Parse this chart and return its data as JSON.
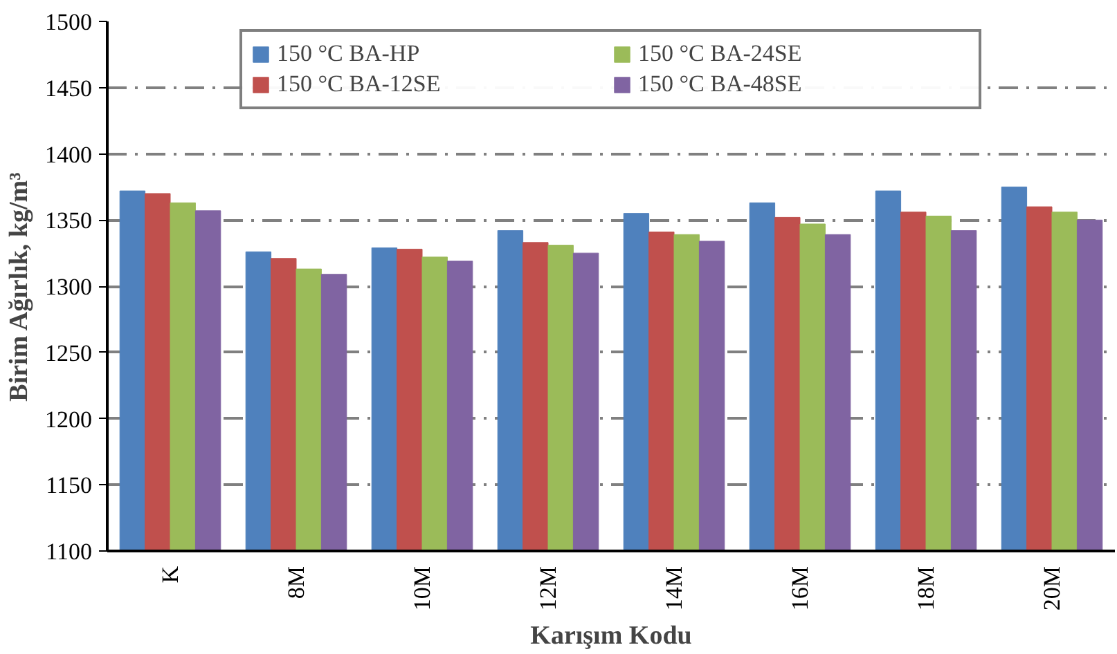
{
  "chart_data": {
    "type": "bar",
    "xlabel": "Karışım Kodu",
    "ylabel": "Birim Ağırlık, kg/m³",
    "categories": [
      "K",
      "8M",
      "10M",
      "12M",
      "14M",
      "16M",
      "18M",
      "20M"
    ],
    "series": [
      {
        "name": "150 °C BA-HP",
        "color": "#4f81bd",
        "values": [
          1372,
          1326,
          1329,
          1342,
          1355,
          1363,
          1372,
          1375
        ]
      },
      {
        "name": "150 °C BA-12SE",
        "color": "#c0504d",
        "values": [
          1370,
          1321,
          1328,
          1333,
          1341,
          1352,
          1356,
          1360
        ]
      },
      {
        "name": "150 °C BA-24SE",
        "color": "#9bbb59",
        "values": [
          1363,
          1313,
          1322,
          1331,
          1339,
          1347,
          1353,
          1356
        ]
      },
      {
        "name": "150 °C BA-48SE",
        "color": "#8064a2",
        "values": [
          1357,
          1309,
          1319,
          1325,
          1334,
          1339,
          1342,
          1350
        ]
      }
    ],
    "ylim": [
      1100,
      1500
    ],
    "yticks": [
      1100,
      1150,
      1200,
      1250,
      1300,
      1350,
      1400,
      1450,
      1500
    ],
    "grid": "y",
    "legend": "top"
  }
}
